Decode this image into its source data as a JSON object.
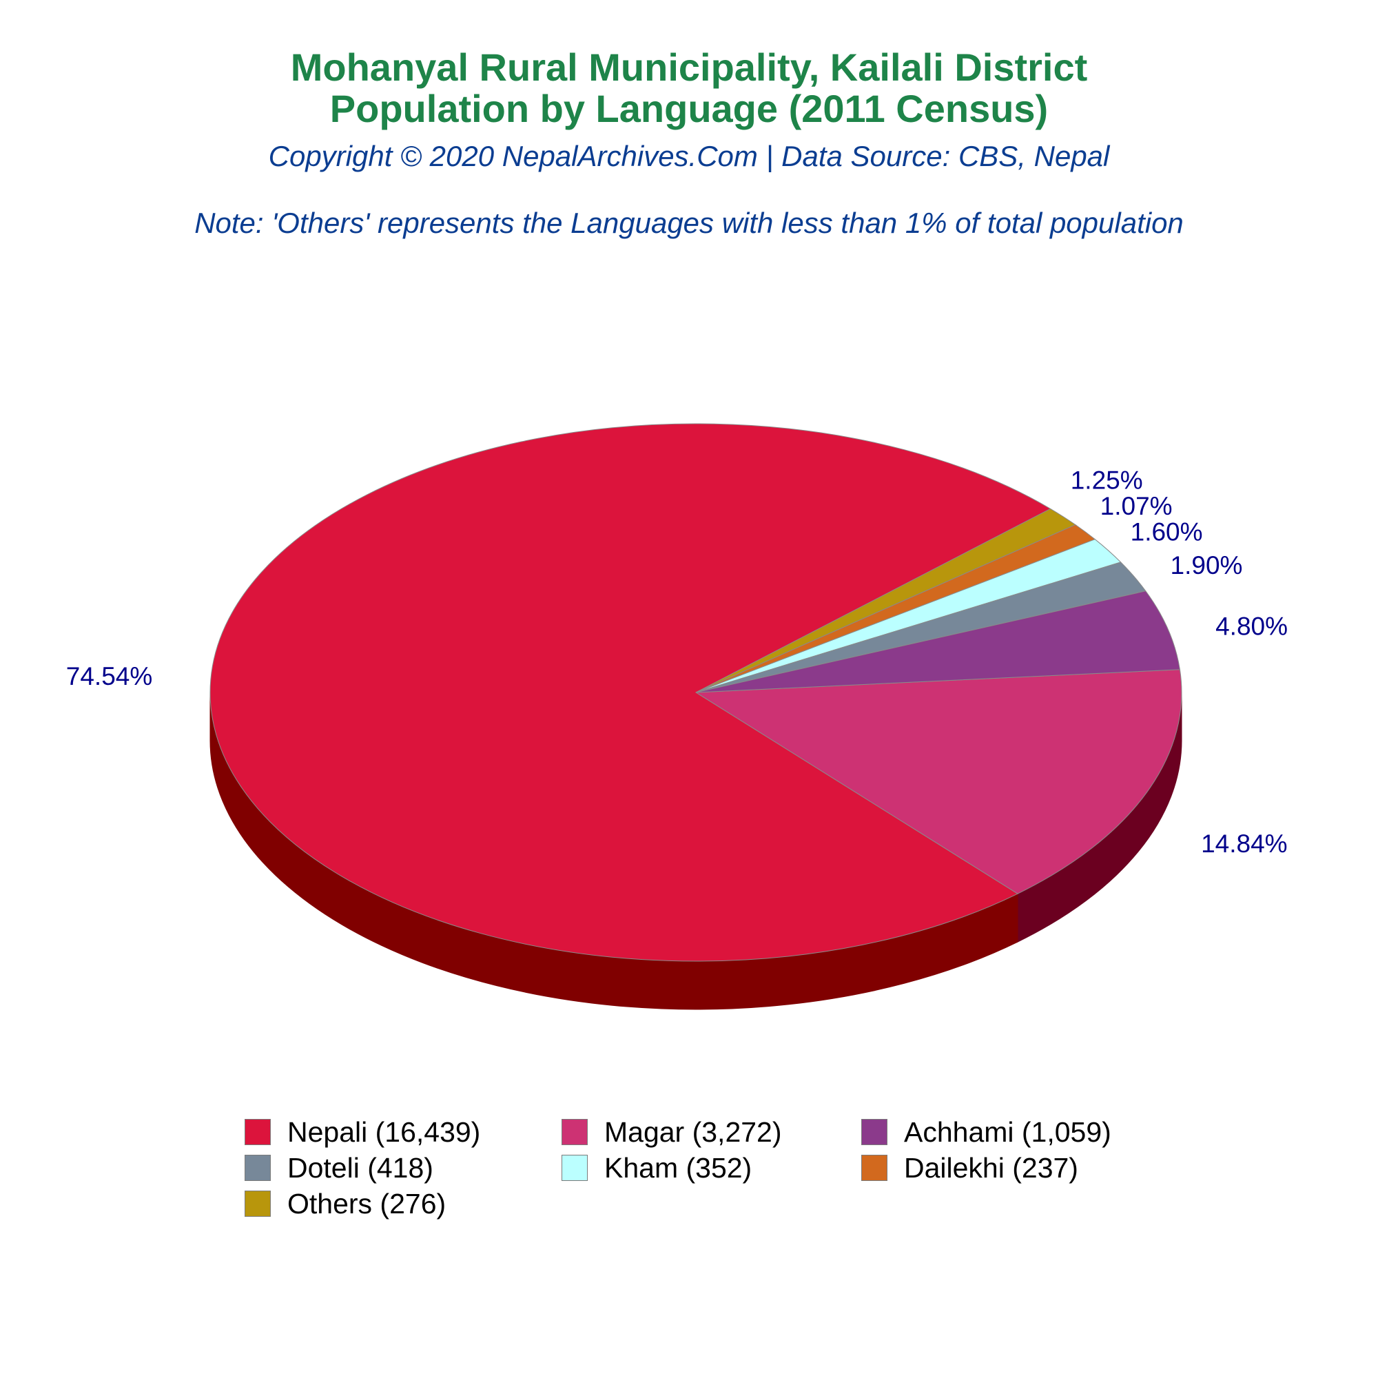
{
  "header": {
    "title_line1": "Mohanyal Rural Municipality, Kailali District",
    "title_line2": "Population by Language (2011 Census)",
    "copyright": "Copyright © 2020 NepalArchives.Com | Data Source: CBS, Nepal",
    "note": "Note: 'Others' represents the Languages with less than 1% of total population"
  },
  "colors": {
    "title": "#1e8449",
    "subtitle": "#0b3d91",
    "label": "#00008b"
  },
  "chart_data": {
    "type": "pie",
    "style": "3d",
    "legend_position": "bottom",
    "slices": [
      {
        "label": "Nepali",
        "value": 16439,
        "percent_label": "74.54%",
        "legend": "Nepali (16,439)",
        "color": "#dc143c",
        "side_color": "#800000"
      },
      {
        "label": "Magar",
        "value": 3272,
        "percent_label": "14.84%",
        "legend": "Magar (3,272)",
        "color": "#cd3273",
        "side_color": "#6b0020"
      },
      {
        "label": "Achhami",
        "value": 1059,
        "percent_label": "4.80%",
        "legend": "Achhami (1,059)",
        "color": "#8b3a8b",
        "side_color": "#4a1a4a"
      },
      {
        "label": "Doteli",
        "value": 418,
        "percent_label": "1.90%",
        "legend": "Doteli (418)",
        "color": "#778899",
        "side_color": "#3e4a55"
      },
      {
        "label": "Kham",
        "value": 352,
        "percent_label": "1.60%",
        "legend": "Kham (352)",
        "color": "#bbffff",
        "side_color": "#6a9a9a"
      },
      {
        "label": "Dailekhi",
        "value": 237,
        "percent_label": "1.07%",
        "legend": "Dailekhi (237)",
        "color": "#d2691e",
        "side_color": "#6e3510"
      },
      {
        "label": "Others",
        "value": 276,
        "percent_label": "1.25%",
        "legend": "Others (276)",
        "color": "#b8960c",
        "side_color": "#5e4c06"
      }
    ]
  }
}
